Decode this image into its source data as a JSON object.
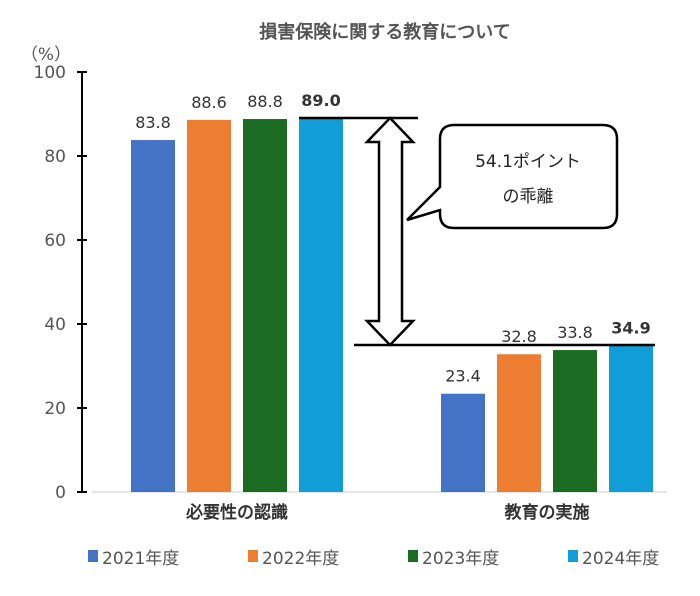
{
  "chart_data": {
    "type": "bar",
    "title": "損害保険に関する教育について",
    "ylabel": "（%）",
    "ylim": [
      0,
      100
    ],
    "yticks": [
      0,
      20,
      40,
      60,
      80,
      100
    ],
    "categories": [
      "必要性の認識",
      "教育の実施"
    ],
    "series": [
      {
        "name": "2021年度",
        "color": "#4472C4",
        "values": [
          83.8,
          23.4
        ],
        "labels": [
          "83.8",
          "23.4"
        ]
      },
      {
        "name": "2022年度",
        "color": "#ED7D31",
        "values": [
          88.6,
          32.8
        ],
        "labels": [
          "88.6",
          "32.8"
        ]
      },
      {
        "name": "2023年度",
        "color": "#1B6B23",
        "values": [
          88.8,
          33.8
        ],
        "labels": [
          "88.8",
          "33.8"
        ]
      },
      {
        "name": "2024年度",
        "color": "#119ED8",
        "values": [
          89.0,
          34.9
        ],
        "labels": [
          "89.0",
          "34.9"
        ],
        "label_color": "#E00000"
      }
    ],
    "legend": "bottom",
    "grid": false,
    "annotation": {
      "line1": "54.1ポイント",
      "line2": "の乖離",
      "from": 89.0,
      "to": 34.9
    }
  }
}
